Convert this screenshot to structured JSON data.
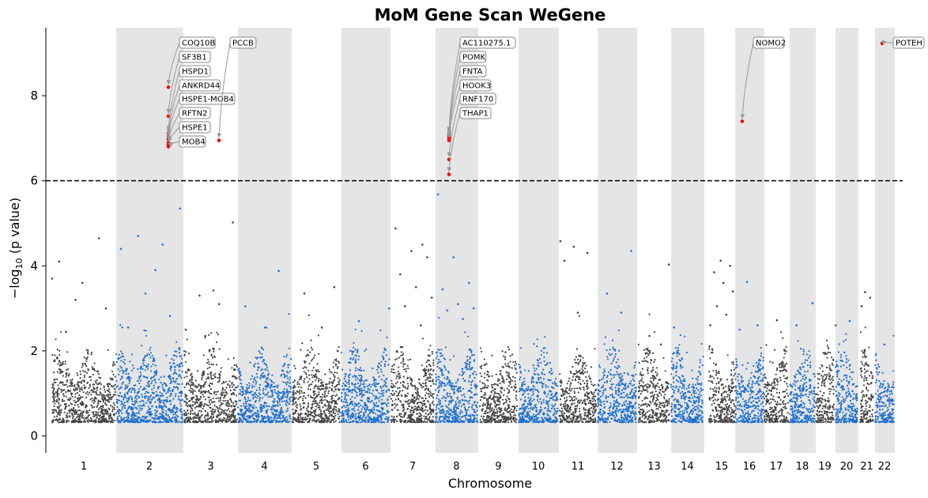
{
  "chart_data": {
    "type": "scatter",
    "title": "MoM Gene Scan WeGene",
    "xlabel": "Chromosome",
    "ylabel_prefix": "−log",
    "ylabel_sub": "10",
    "ylabel_suffix": " (p value)",
    "ylim": [
      -0.4,
      9.6
    ],
    "yticks": [
      0,
      2,
      4,
      6,
      8
    ],
    "threshold": 6,
    "chromosomes": [
      "1",
      "2",
      "3",
      "4",
      "5",
      "6",
      "7",
      "8",
      "9",
      "10",
      "11",
      "12",
      "13",
      "14",
      "15",
      "16",
      "17",
      "18",
      "19",
      "20",
      "21",
      "22"
    ],
    "colors": {
      "odd": "#444444",
      "even": "#1f6fcf",
      "significant": "#ff0000",
      "band": "#e5e5e5",
      "threshold": "#000000",
      "arrow": "#999999"
    },
    "outliers": [
      {
        "chrom": "1",
        "y": 3.7
      },
      {
        "chrom": "1",
        "y": 3.2
      },
      {
        "chrom": "1",
        "y": 4.65
      },
      {
        "chrom": "1",
        "y": 4.1
      },
      {
        "chrom": "1",
        "y": 3.6
      },
      {
        "chrom": "1",
        "y": 3.0
      },
      {
        "chrom": "1",
        "y": 2.45
      },
      {
        "chrom": "2",
        "y": 3.9
      },
      {
        "chrom": "2",
        "y": 5.35
      },
      {
        "chrom": "2",
        "y": 4.7
      },
      {
        "chrom": "2",
        "y": 4.5
      },
      {
        "chrom": "2",
        "y": 4.4
      },
      {
        "chrom": "2",
        "y": 3.35
      },
      {
        "chrom": "2",
        "y": 2.82
      },
      {
        "chrom": "2",
        "y": 2.55
      },
      {
        "chrom": "3",
        "y": 3.42
      },
      {
        "chrom": "3",
        "y": 5.02
      },
      {
        "chrom": "3",
        "y": 3.3
      },
      {
        "chrom": "3",
        "y": 3.1
      },
      {
        "chrom": "3",
        "y": 2.5
      },
      {
        "chrom": "3",
        "y": 2.35
      },
      {
        "chrom": "4",
        "y": 3.88
      },
      {
        "chrom": "4",
        "y": 3.05
      },
      {
        "chrom": "4",
        "y": 2.55
      },
      {
        "chrom": "5",
        "y": 3.5
      },
      {
        "chrom": "5",
        "y": 3.35
      },
      {
        "chrom": "5",
        "y": 2.55
      },
      {
        "chrom": "6",
        "y": 3.0
      },
      {
        "chrom": "6",
        "y": 2.7
      },
      {
        "chrom": "7",
        "y": 4.5
      },
      {
        "chrom": "7",
        "y": 4.88
      },
      {
        "chrom": "7",
        "y": 4.35
      },
      {
        "chrom": "7",
        "y": 4.2
      },
      {
        "chrom": "7",
        "y": 3.8
      },
      {
        "chrom": "7",
        "y": 3.5
      },
      {
        "chrom": "7",
        "y": 3.25
      },
      {
        "chrom": "7",
        "y": 3.05
      },
      {
        "chrom": "7",
        "y": 2.6
      },
      {
        "chrom": "8",
        "y": 5.68
      },
      {
        "chrom": "8",
        "y": 4.2
      },
      {
        "chrom": "8",
        "y": 3.6
      },
      {
        "chrom": "8",
        "y": 3.45
      },
      {
        "chrom": "8",
        "y": 3.1
      },
      {
        "chrom": "8",
        "y": 3.0
      },
      {
        "chrom": "8",
        "y": 2.95
      },
      {
        "chrom": "8",
        "y": 2.75
      },
      {
        "chrom": "11",
        "y": 4.58
      },
      {
        "chrom": "11",
        "y": 4.45
      },
      {
        "chrom": "11",
        "y": 4.3
      },
      {
        "chrom": "11",
        "y": 4.12
      },
      {
        "chrom": "11",
        "y": 2.9
      },
      {
        "chrom": "12",
        "y": 4.35
      },
      {
        "chrom": "12",
        "y": 3.35
      },
      {
        "chrom": "12",
        "y": 2.9
      },
      {
        "chrom": "13",
        "y": 4.03
      },
      {
        "chrom": "13",
        "y": 2.35
      },
      {
        "chrom": "13",
        "y": 2.15
      },
      {
        "chrom": "14",
        "y": 2.55
      },
      {
        "chrom": "15",
        "y": 4.12
      },
      {
        "chrom": "15",
        "y": 4.0
      },
      {
        "chrom": "15",
        "y": 3.85
      },
      {
        "chrom": "15",
        "y": 3.6
      },
      {
        "chrom": "15",
        "y": 3.4
      },
      {
        "chrom": "15",
        "y": 3.05
      },
      {
        "chrom": "15",
        "y": 2.85
      },
      {
        "chrom": "15",
        "y": 2.6
      },
      {
        "chrom": "16",
        "y": 3.62
      },
      {
        "chrom": "16",
        "y": 2.6
      },
      {
        "chrom": "16",
        "y": 2.5
      },
      {
        "chrom": "17",
        "y": 2.72
      },
      {
        "chrom": "18",
        "y": 3.12
      },
      {
        "chrom": "18",
        "y": 2.6
      },
      {
        "chrom": "20",
        "y": 2.7
      },
      {
        "chrom": "20",
        "y": 2.6
      },
      {
        "chrom": "21",
        "y": 3.38
      },
      {
        "chrom": "21",
        "y": 3.25
      },
      {
        "chrom": "21",
        "y": 3.05
      },
      {
        "chrom": "22",
        "y": 2.15
      }
    ],
    "significant_points": [
      {
        "chrom": "2",
        "y": 8.2
      },
      {
        "chrom": "2",
        "y": 7.52
      },
      {
        "chrom": "2",
        "y": 7.12
      },
      {
        "chrom": "2",
        "y": 7.05
      },
      {
        "chrom": "2",
        "y": 6.98
      },
      {
        "chrom": "2",
        "y": 6.9
      },
      {
        "chrom": "2",
        "y": 6.85
      },
      {
        "chrom": "2",
        "y": 6.8
      },
      {
        "chrom": "3",
        "y": 6.95
      },
      {
        "chrom": "8",
        "y": 7.1
      },
      {
        "chrom": "8",
        "y": 7.05
      },
      {
        "chrom": "8",
        "y": 7.0
      },
      {
        "chrom": "8",
        "y": 6.95
      },
      {
        "chrom": "8",
        "y": 6.5
      },
      {
        "chrom": "8",
        "y": 6.15
      },
      {
        "chrom": "16",
        "y": 7.4
      },
      {
        "chrom": "22",
        "y": 9.23
      }
    ],
    "annotations": [
      {
        "gene": "COQ10B",
        "chrom": "2",
        "y": 8.2
      },
      {
        "gene": "SF3B1",
        "chrom": "2",
        "y": 7.52
      },
      {
        "gene": "HSPD1",
        "chrom": "2",
        "y": 7.12
      },
      {
        "gene": "ANKRD44",
        "chrom": "2",
        "y": 7.05
      },
      {
        "gene": "HSPE1-MOB4",
        "chrom": "2",
        "y": 6.98
      },
      {
        "gene": "RFTN2",
        "chrom": "2",
        "y": 6.9
      },
      {
        "gene": "HSPE1",
        "chrom": "2",
        "y": 6.85
      },
      {
        "gene": "MOB4",
        "chrom": "2",
        "y": 6.8
      },
      {
        "gene": "PCCB",
        "chrom": "3",
        "y": 6.95
      },
      {
        "gene": "AC110275.1",
        "chrom": "8",
        "y": 7.1
      },
      {
        "gene": "POMK",
        "chrom": "8",
        "y": 7.05
      },
      {
        "gene": "FNTA",
        "chrom": "8",
        "y": 7.0
      },
      {
        "gene": "HOOK3",
        "chrom": "8",
        "y": 6.95
      },
      {
        "gene": "RNF170",
        "chrom": "8",
        "y": 6.5
      },
      {
        "gene": "THAP1",
        "chrom": "8",
        "y": 6.15
      },
      {
        "gene": "NOMO2",
        "chrom": "16",
        "y": 7.4
      },
      {
        "gene": "POTEH",
        "chrom": "22",
        "y": 9.23
      }
    ],
    "grid": false,
    "legend": "none"
  }
}
